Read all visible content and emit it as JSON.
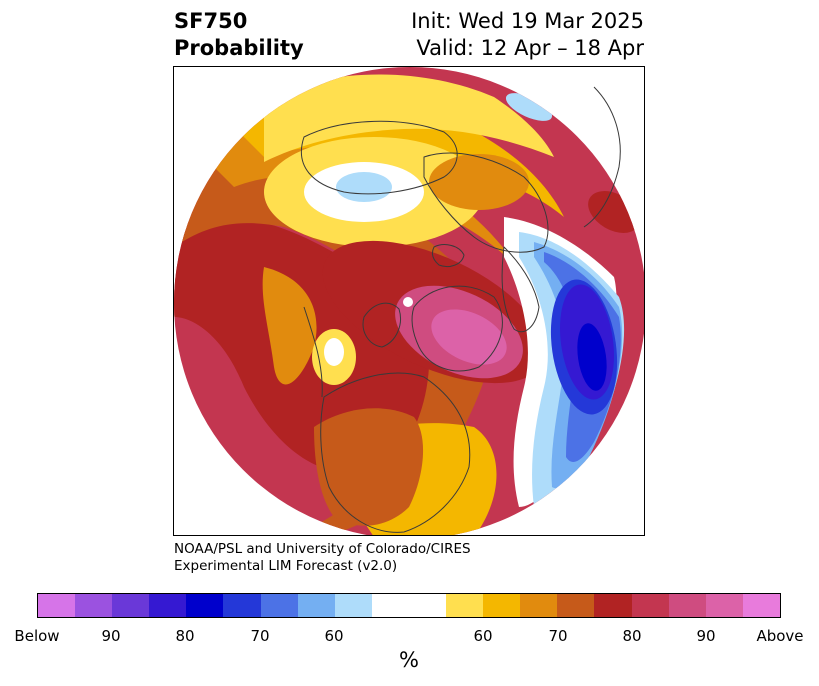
{
  "header": {
    "title_line1": "SF750",
    "title_line2": "Probability",
    "init_label": "Init: Wed 19 Mar 2025",
    "valid_label": "Valid: 12 Apr – 18 Apr"
  },
  "credit": {
    "line1": "NOAA/PSL and University of Colorado/CIRES",
    "line2": "Experimental LIM Forecast (v2.0)"
  },
  "colorbar": {
    "colors": [
      "#d674e8",
      "#9b52e0",
      "#6a38d8",
      "#3519d2",
      "#0000cc",
      "#2438d8",
      "#4c72e6",
      "#74aff2",
      "#aedcfa",
      "#ffffff",
      "#ffffff",
      "#ffdf4f",
      "#f4b700",
      "#e18b0e",
      "#c65a1a",
      "#b12323",
      "#c33650",
      "#cf4c80",
      "#dc62a8",
      "#e87bdc"
    ],
    "tick_labels": [
      "Below",
      "90",
      "80",
      "70",
      "60",
      "60",
      "70",
      "80",
      "90",
      "Above"
    ],
    "unit": "%"
  },
  "map_colors": {
    "dark_red": "#b12323",
    "crimson": "#c33650",
    "orange": "#e18b0e",
    "burnt_orange": "#c65a1a",
    "gold": "#f4b700",
    "yellow": "#ffdf4f",
    "pink": "#cf4c80",
    "magenta": "#dc62a8",
    "light_blue": "#aedcfa",
    "sky_blue": "#74aff2",
    "blue": "#4c72e6",
    "royal_blue": "#2438d8",
    "navy": "#0000cc",
    "indigo": "#3519d2",
    "coastline": "#3a3a3a"
  }
}
